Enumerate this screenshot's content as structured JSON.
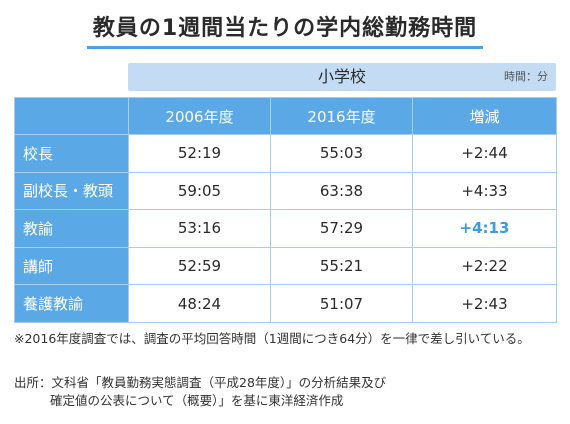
{
  "title": "教員の1週間当たりの学内総勤務時間",
  "subheader": {
    "name": "小学校",
    "unit": "時間：分"
  },
  "table": {
    "columns": [
      "2006年度",
      "2016年度",
      "増減"
    ],
    "rows": [
      {
        "label": "校長",
        "values": [
          "52:19",
          "55:03",
          "+2:44"
        ]
      },
      {
        "label": "副校長・教頭",
        "values": [
          "59:05",
          "63:38",
          "+4:33"
        ]
      },
      {
        "label": "教諭",
        "values": [
          "53:16",
          "57:29",
          "+4:13"
        ]
      },
      {
        "label": "講師",
        "values": [
          "52:59",
          "55:21",
          "+2:22"
        ]
      },
      {
        "label": "養護教諭",
        "values": [
          "48:24",
          "51:07",
          "+2:43"
        ]
      }
    ]
  },
  "note": "※2016年度調査では、調査の平均回答時間（1週間につき64分）を一律で差し引いている。",
  "source": {
    "line1": "出所：文科省「教員勤務実態調査（平成28年度）」の分析結果及び",
    "line2": "確定値の公表について（概要）」を基に東洋経済作成"
  },
  "colors": {
    "accent": "#5aa9e6",
    "subheader": "#c4dcf3",
    "highlight": "#3d9be3"
  }
}
